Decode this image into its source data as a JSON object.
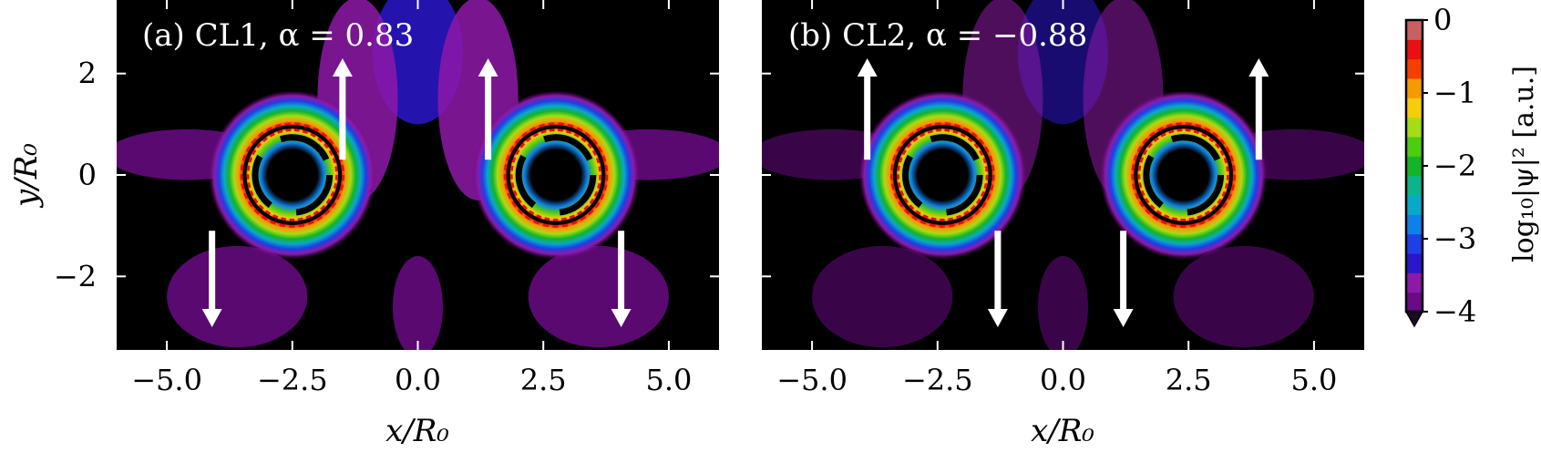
{
  "chart_data": [
    {
      "type": "heatmap",
      "panel_label": "(a) CL1, α = 0.83",
      "xlabel": "x/R₀",
      "ylabel": "y/R₀",
      "xlim": [
        -6.0,
        6.0
      ],
      "ylim": [
        -3.45,
        3.45
      ],
      "x_ticks": [
        -5.0,
        -2.5,
        0.0,
        2.5,
        5.0
      ],
      "x_tick_labels": [
        "−5.0",
        "−2.5",
        "0.0",
        "2.5",
        "5.0"
      ],
      "y_ticks": [
        2,
        0,
        -2
      ],
      "y_tick_labels": [
        "2",
        "0",
        "−2"
      ],
      "rings": [
        {
          "center": [
            -2.5,
            0
          ],
          "outer_radius": 0.95,
          "inner_radius": 0.45
        },
        {
          "center": [
            2.75,
            0
          ],
          "outer_radius": 0.95,
          "inner_radius": 0.45
        }
      ],
      "arrows": [
        {
          "x": -1.5,
          "y_start": 0.3,
          "y_end": 2.3
        },
        {
          "x": 1.4,
          "y_start": 0.3,
          "y_end": 2.3
        },
        {
          "x": -4.1,
          "y_start": -1.1,
          "y_end": -3.0
        },
        {
          "x": 4.05,
          "y_start": -1.1,
          "y_end": -3.0
        }
      ]
    },
    {
      "type": "heatmap",
      "panel_label": "(b) CL2, α = −0.88",
      "xlabel": "x/R₀",
      "ylabel": "",
      "xlim": [
        -6.0,
        6.0
      ],
      "ylim": [
        -3.45,
        3.45
      ],
      "x_ticks": [
        -5.0,
        -2.5,
        0.0,
        2.5,
        5.0
      ],
      "x_tick_labels": [
        "−5.0",
        "−2.5",
        "0.0",
        "2.5",
        "5.0"
      ],
      "rings": [
        {
          "center": [
            -2.4,
            0
          ],
          "outer_radius": 0.95,
          "inner_radius": 0.45
        },
        {
          "center": [
            2.4,
            0
          ],
          "outer_radius": 0.95,
          "inner_radius": 0.45
        }
      ],
      "arrows": [
        {
          "x": -3.9,
          "y_start": 0.3,
          "y_end": 2.3
        },
        {
          "x": 3.9,
          "y_start": 0.3,
          "y_end": 2.3
        },
        {
          "x": -1.3,
          "y_start": -1.1,
          "y_end": -3.0
        },
        {
          "x": 1.2,
          "y_start": -1.1,
          "y_end": -3.0
        }
      ]
    }
  ],
  "colorbar": {
    "label": "log₁₀|ψ|² [a.u.]",
    "range": [
      -4,
      0
    ],
    "ticks": [
      0,
      -1,
      -2,
      -3,
      -4
    ],
    "tick_labels": [
      "0",
      "−1",
      "−2",
      "−3",
      "−4"
    ],
    "extend": "min",
    "colors": [
      "#6a0a84",
      "#8e19a8",
      "#2b16cc",
      "#1e3fe6",
      "#0f80e8",
      "#09a8c8",
      "#0bb48a",
      "#13b428",
      "#4ccd10",
      "#a6dc16",
      "#f5ce0a",
      "#f59a00",
      "#f53f00",
      "#e81010",
      "#c96060"
    ]
  },
  "colors": {
    "background": "#000000",
    "ring_line": "#000000",
    "arrow": "#ffffff"
  }
}
